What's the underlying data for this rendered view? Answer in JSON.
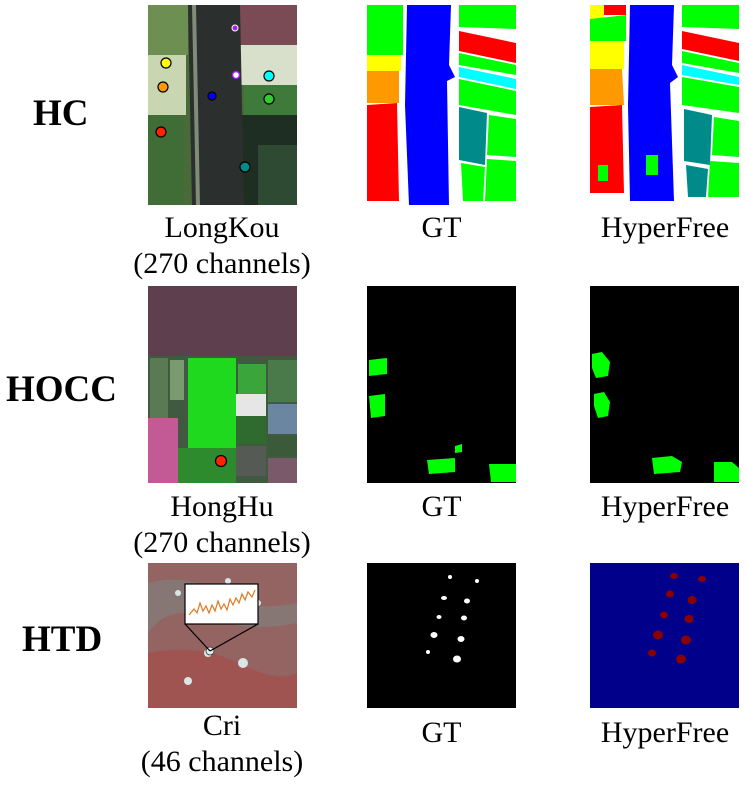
{
  "rows": [
    {
      "task": "HC",
      "dataset": "LongKou",
      "channels": "(270 channels)",
      "gt_label": "GT",
      "pred_label": "HyperFree"
    },
    {
      "task": "HOCC",
      "dataset": "HongHu",
      "channels": "(270 channels)",
      "gt_label": "GT",
      "pred_label": "HyperFree"
    },
    {
      "task": "HTD",
      "dataset": "Cri",
      "channels": "(46 channels)",
      "gt_label": "GT",
      "pred_label": "HyperFree"
    }
  ],
  "colors": {
    "class_green": "#00ff00",
    "class_blue": "#0000ff",
    "class_red": "#ff0000",
    "class_orange": "#ff9900",
    "class_yellow": "#ffff00",
    "class_cyan": "#00ffff",
    "class_teal": "#008b8b",
    "htd_pred_background": "#00008b",
    "htd_pred_target": "#8b0000"
  }
}
